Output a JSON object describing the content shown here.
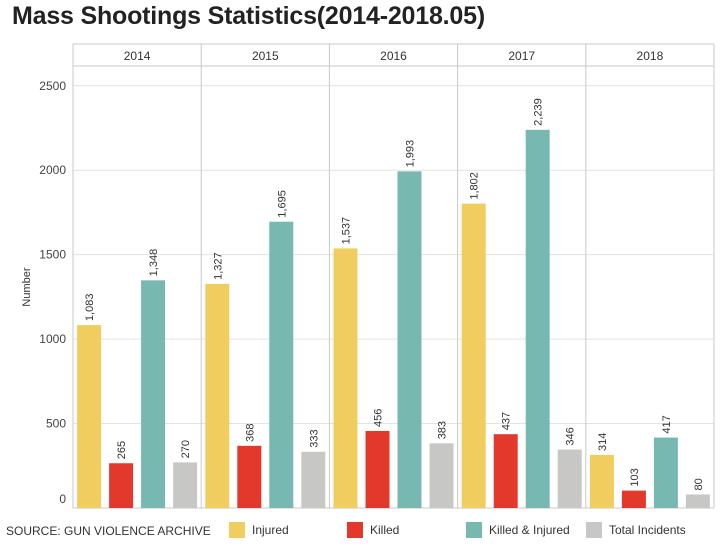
{
  "title": "Mass Shootings Statistics(2014-2018.05)",
  "source": "SOURCE: GUN VIOLENCE ARCHIVE",
  "colors": {
    "injured": "#f0cd5e",
    "killed": "#e3392c",
    "killed_injured": "#77b8b1",
    "total_incidents": "#c7c8c6"
  },
  "chart_data": {
    "type": "bar",
    "categories": [
      "2014",
      "2015",
      "2016",
      "2017",
      "2018"
    ],
    "series": [
      {
        "name": "Injured",
        "values": [
          1083,
          1327,
          1537,
          1802,
          314
        ]
      },
      {
        "name": "Killed",
        "values": [
          265,
          368,
          456,
          437,
          103
        ]
      },
      {
        "name": "Killed & Injured",
        "values": [
          1348,
          1695,
          1993,
          2239,
          417
        ]
      },
      {
        "name": "Total Incidents",
        "values": [
          270,
          333,
          383,
          346,
          80
        ]
      }
    ],
    "value_labels": [
      [
        "1,083",
        "1,327",
        "1,537",
        "1,802",
        "314"
      ],
      [
        "265",
        "368",
        "456",
        "437",
        "103"
      ],
      [
        "1,348",
        "1,695",
        "1,993",
        "2,239",
        "417"
      ],
      [
        "270",
        "333",
        "383",
        "346",
        "80"
      ]
    ],
    "title": "Mass Shootings Statistics(2014-2018.05)",
    "xlabel": "",
    "ylabel": "Number",
    "ylim": [
      0,
      2500
    ],
    "yticks": [
      "0",
      "500",
      "1000",
      "1500",
      "2000",
      "2500"
    ],
    "grid": true,
    "legend": "bottom"
  }
}
